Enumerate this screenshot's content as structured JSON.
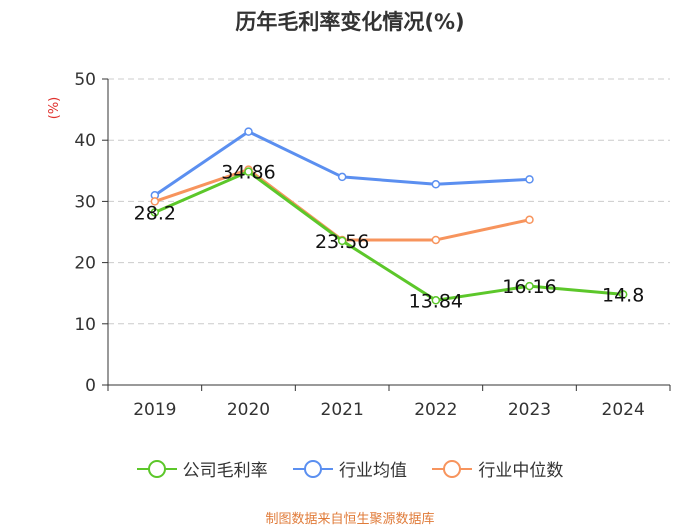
{
  "chart_data": {
    "type": "line",
    "title": "历年毛利率变化情况(%)",
    "ylabel": "(%)",
    "xlabel": "",
    "ylim": [
      0,
      50
    ],
    "yticks": [
      0,
      10,
      20,
      30,
      40,
      50
    ],
    "categories": [
      "2019",
      "2020",
      "2021",
      "2022",
      "2023",
      "2024"
    ],
    "series": [
      {
        "name": "公司毛利率",
        "color": "#5cc72a",
        "values": [
          28.2,
          34.86,
          23.56,
          13.84,
          16.16,
          14.8
        ],
        "labels": [
          "28.2",
          "34.86",
          "23.56",
          "13.84",
          "16.16",
          "14.8"
        ]
      },
      {
        "name": "行业均值",
        "color": "#5b8ff0",
        "values": [
          31.0,
          41.4,
          34.0,
          32.8,
          33.6,
          null
        ]
      },
      {
        "name": "行业中位数",
        "color": "#f7945d",
        "values": [
          30.0,
          35.2,
          23.7,
          23.7,
          27.0,
          null
        ]
      }
    ],
    "legend_position": "bottom",
    "grid": true,
    "source": "制图数据来自恒生聚源数据库"
  }
}
